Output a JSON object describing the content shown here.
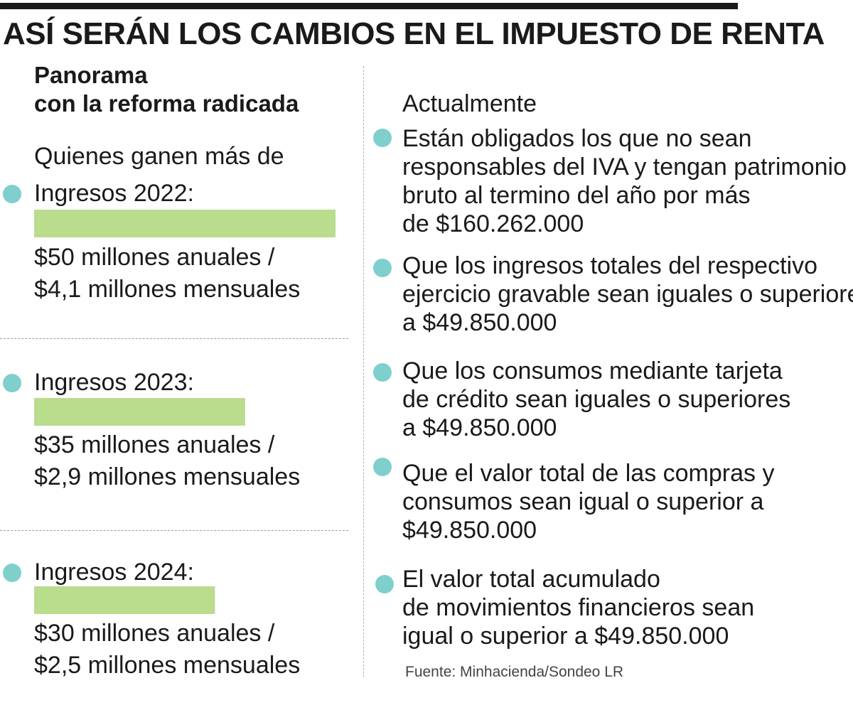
{
  "title": "ASÍ SERÁN LOS CAMBIOS EN EL IMPUESTO DE RENTA",
  "left": {
    "heading_lines": [
      "Panorama",
      "con la reforma radicada"
    ],
    "subheading": "Quienes ganen más de"
  },
  "chart_data": {
    "type": "bar",
    "orientation": "horizontal",
    "title": "Quienes ganen más de",
    "categories": [
      "Ingresos 2022:",
      "Ingresos 2023:",
      "Ingresos 2024:"
    ],
    "values": [
      50,
      35,
      30
    ],
    "unit": "millones anuales",
    "labels": [
      [
        "$50 millones anuales /",
        "$4,1 millones mensuales"
      ],
      [
        "$35 millones anuales /",
        "$2,9 millones mensuales"
      ],
      [
        "$30 millones anuales /",
        "$2,5 millones mensuales"
      ]
    ],
    "bar_color": "#b9dc8d",
    "xlim": [
      0,
      50
    ],
    "grid": false
  },
  "right": {
    "title": "Actualmente",
    "items": [
      [
        "Están obligados los que no sean",
        "responsables del IVA y tengan patrimonio",
        "bruto al termino del año por más",
        "de $160.262.000"
      ],
      [
        "Que los ingresos totales del respectivo",
        "ejercicio gravable sean iguales o superiores",
        "a $49.850.000"
      ],
      [
        "Que los consumos mediante tarjeta",
        "de crédito sean iguales o superiores",
        "a $49.850.000"
      ],
      [
        "Que el valor total de las compras y",
        "consumos sean igual o superior a",
        "$49.850.000"
      ],
      [
        "El valor total acumulado",
        "de movimientos financieros sean",
        "igual o superior a  $49.850.000"
      ]
    ]
  },
  "source": "Fuente: Minhacienda/Sondeo LR",
  "colors": {
    "accent_dot": "#7fcfcd",
    "bar": "#b9dc8d",
    "text": "#1a1a1a"
  }
}
